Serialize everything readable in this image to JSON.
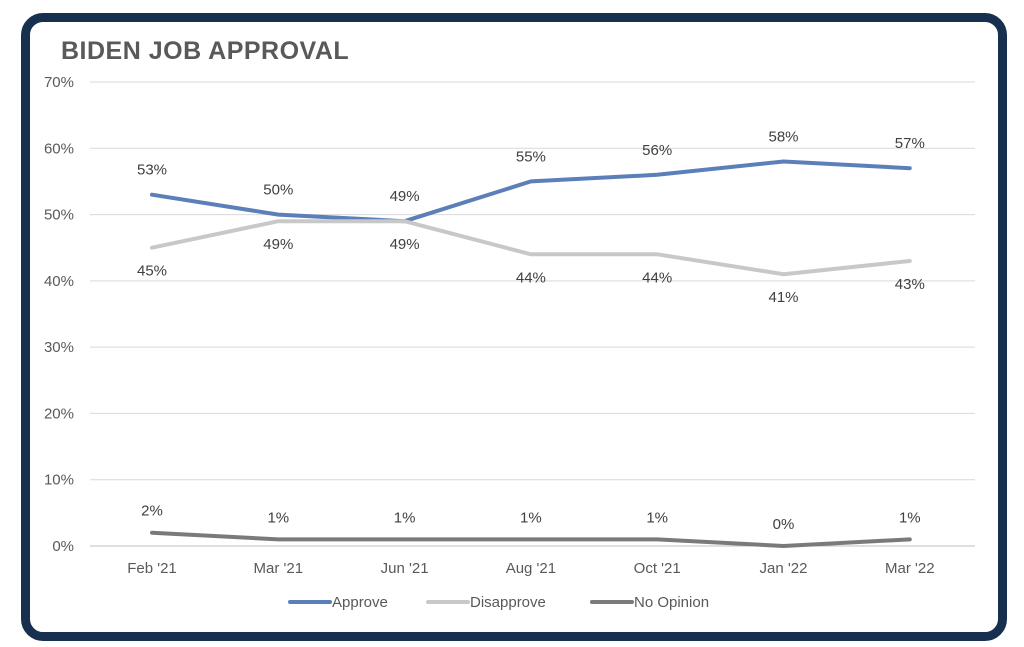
{
  "chart_data": {
    "type": "line",
    "title": "BIDEN JOB APPROVAL",
    "categories": [
      "Feb '21",
      "Mar '21",
      "Jun '21",
      "Aug '21",
      "Oct '21",
      "Jan '22",
      "Mar '22"
    ],
    "y_ticks": [
      "0%",
      "10%",
      "20%",
      "30%",
      "40%",
      "50%",
      "60%",
      "70%"
    ],
    "ylim": [
      0,
      70
    ],
    "grid": true,
    "legend_position": "bottom",
    "series": [
      {
        "name": "Approve",
        "color": "#5b7fb8",
        "values": [
          53,
          50,
          49,
          55,
          56,
          58,
          57
        ],
        "labels": [
          "53%",
          "50%",
          "49%",
          "55%",
          "56%",
          "58%",
          "57%"
        ]
      },
      {
        "name": "Disapprove",
        "color": "#c8c8c8",
        "values": [
          45,
          49,
          49,
          44,
          44,
          41,
          43
        ],
        "labels": [
          "45%",
          "49%",
          "49%",
          "44%",
          "44%",
          "41%",
          "43%"
        ]
      },
      {
        "name": "No Opinion",
        "color": "#7a7a7a",
        "values": [
          2,
          1,
          1,
          1,
          1,
          0,
          1
        ],
        "labels": [
          "2%",
          "1%",
          "1%",
          "1%",
          "1%",
          "0%",
          "1%"
        ]
      }
    ]
  }
}
